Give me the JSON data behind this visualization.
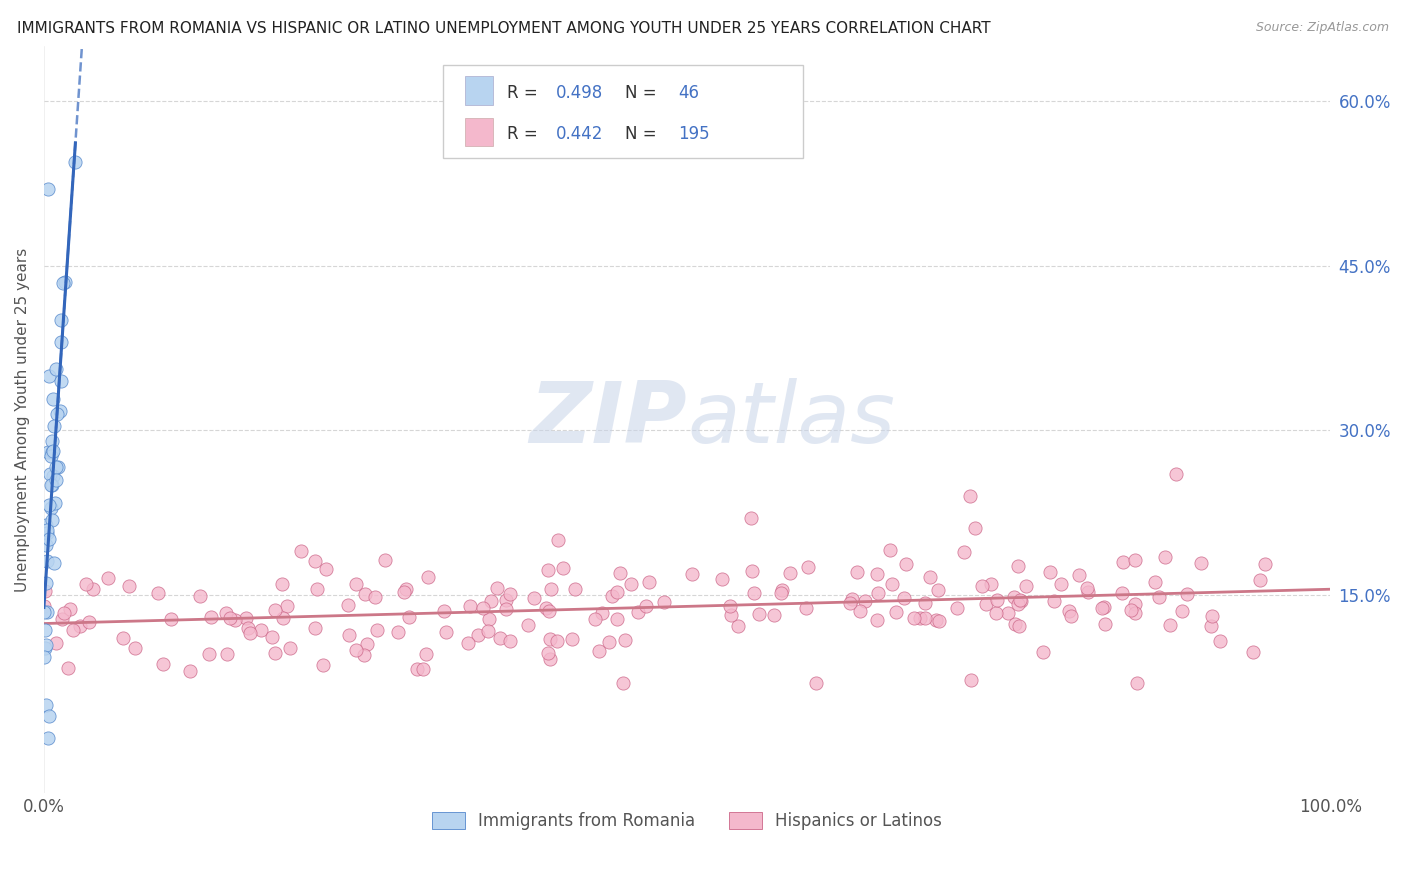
{
  "title": "IMMIGRANTS FROM ROMANIA VS HISPANIC OR LATINO UNEMPLOYMENT AMONG YOUTH UNDER 25 YEARS CORRELATION CHART",
  "source": "Source: ZipAtlas.com",
  "ylabel": "Unemployment Among Youth under 25 years",
  "xlim": [
    0,
    1.0
  ],
  "ylim": [
    -0.03,
    0.65
  ],
  "xtick_labels": [
    "0.0%",
    "100.0%"
  ],
  "ytick_labels": [
    "15.0%",
    "30.0%",
    "45.0%",
    "60.0%"
  ],
  "ytick_values": [
    0.15,
    0.3,
    0.45,
    0.6
  ],
  "r_romania": 0.498,
  "n_romania": 46,
  "r_hispanic": 0.442,
  "n_hispanic": 195,
  "color_romania_fill": "#b8d4f0",
  "color_romania_edge": "#5588cc",
  "color_hispanic_fill": "#f4b8cc",
  "color_hispanic_edge": "#cc6688",
  "color_romania_line": "#3366bb",
  "color_hispanic_line": "#cc7788",
  "legend_text_color": "#4472c4",
  "legend_value_color": "#4472c4",
  "watermark_zip": "#c8d4e8",
  "watermark_atlas": "#c8d4e8",
  "background_color": "#ffffff",
  "grid_color": "#cccccc",
  "ylabel_color": "#555555",
  "xtick_color": "#555555"
}
